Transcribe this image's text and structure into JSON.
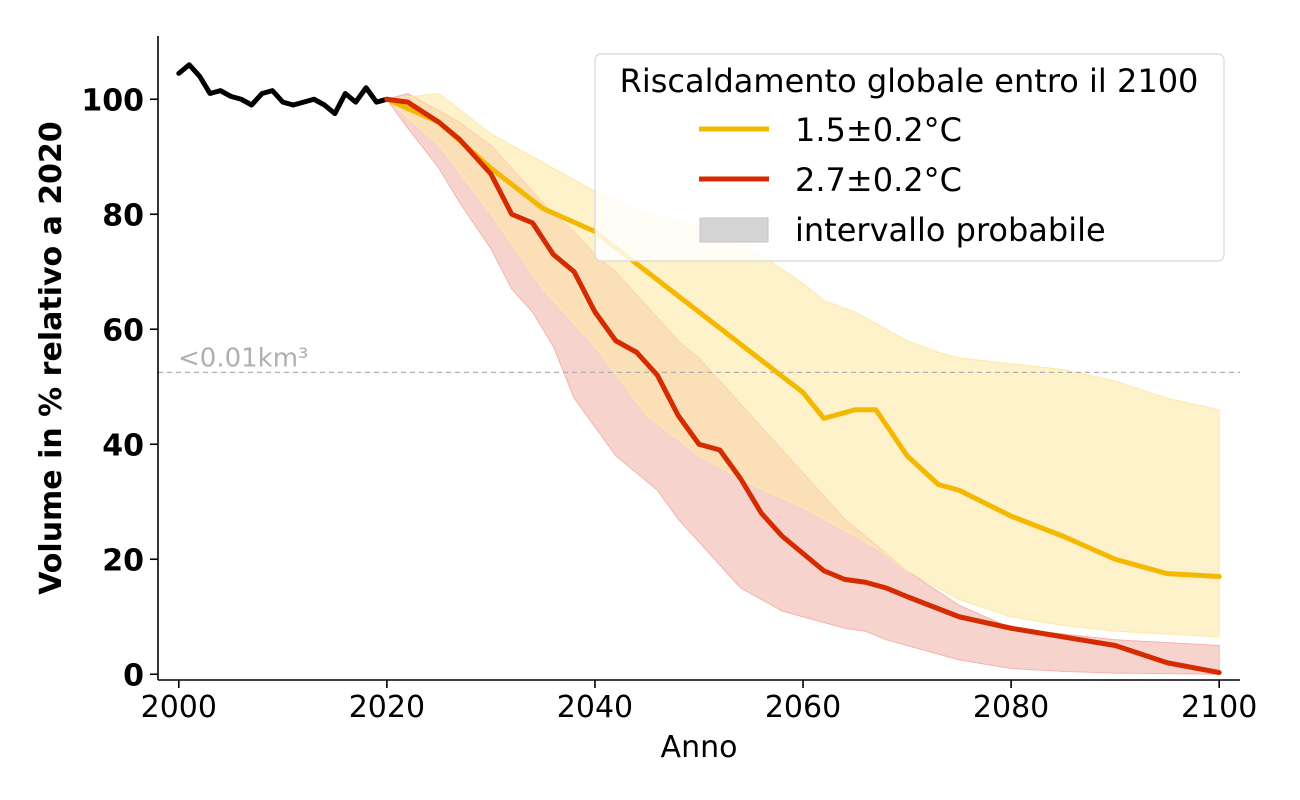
{
  "chart_data": {
    "type": "line",
    "xlabel": "Anno",
    "ylabel": "Volume in % relativo a 2020",
    "xlim": [
      1998,
      2102
    ],
    "ylim": [
      -1,
      111
    ],
    "xticks": [
      2000,
      2020,
      2040,
      2060,
      2080,
      2100
    ],
    "yticks": [
      0,
      20,
      40,
      60,
      80,
      100
    ],
    "grid": false,
    "legend": {
      "placement": "top-right",
      "title": "Riscaldamento globale entro il 2100",
      "entries": [
        "1.5±0.2°C",
        "2.7±0.2°C",
        "intervallo probabile"
      ]
    },
    "threshold": {
      "y": 52.5,
      "label": "<0.01km³",
      "color": "#b0b0b0"
    },
    "series": [
      {
        "name": "",
        "color": "#000000",
        "x": [
          2000,
          2001,
          2002,
          2003,
          2004,
          2005,
          2006,
          2007,
          2008,
          2009,
          2010,
          2011,
          2012,
          2013,
          2014,
          2015,
          2016,
          2017,
          2018,
          2019,
          2020
        ],
        "values": [
          104.5,
          106,
          104,
          101,
          101.5,
          100.5,
          100,
          99,
          101,
          101.5,
          99.5,
          99,
          99.5,
          100,
          99,
          97.5,
          101,
          99.5,
          102,
          99.5,
          100
        ]
      },
      {
        "name": "1.5±0.2°C",
        "color": "#f5b800",
        "band_color": "#fde9a8",
        "x": [
          2020,
          2025,
          2030,
          2035,
          2040,
          2045,
          2050,
          2055,
          2060,
          2062,
          2065,
          2067,
          2070,
          2073,
          2075,
          2080,
          2085,
          2090,
          2095,
          2100
        ],
        "values": [
          100,
          96,
          88,
          81,
          77,
          70,
          63,
          56,
          49,
          44.5,
          46,
          46,
          38,
          33,
          32,
          27.5,
          24,
          20,
          17.5,
          17
        ],
        "low": [
          100,
          92,
          80,
          67,
          57,
          45,
          38,
          33,
          29,
          27,
          24,
          22,
          18,
          15,
          13,
          10,
          8.5,
          7.5,
          7,
          6.5
        ],
        "high": [
          100,
          101,
          94,
          89,
          84,
          80,
          78,
          74,
          68,
          65,
          63,
          61,
          58,
          56,
          55,
          54,
          53,
          51,
          48,
          46
        ]
      },
      {
        "name": "2.7±0.2°C",
        "color": "#d42b00",
        "band_color": "#f2b5ad",
        "x": [
          2020,
          2022,
          2025,
          2027,
          2030,
          2032,
          2034,
          2036,
          2038,
          2040,
          2042,
          2044,
          2046,
          2048,
          2050,
          2052,
          2054,
          2056,
          2058,
          2060,
          2062,
          2064,
          2066,
          2068,
          2070,
          2075,
          2080,
          2085,
          2090,
          2095,
          2100
        ],
        "values": [
          100,
          99.5,
          96,
          93,
          87,
          80,
          78.5,
          73,
          70,
          63,
          58,
          56,
          52,
          45,
          40,
          39,
          34,
          28,
          24,
          21,
          18,
          16.5,
          16,
          15,
          13.5,
          10,
          8,
          6.5,
          5,
          2,
          0.3
        ],
        "low": [
          100,
          95,
          88,
          82,
          74,
          67,
          63,
          57,
          48,
          43,
          38,
          35,
          32,
          27,
          23,
          19,
          15,
          13,
          11,
          10,
          9,
          8,
          7.5,
          6,
          5,
          2.5,
          1,
          0.5,
          0.2,
          0.1,
          0
        ],
        "high": [
          100,
          101,
          98,
          96,
          92,
          88,
          84,
          80,
          77,
          73,
          70,
          66,
          62,
          58,
          55,
          51,
          47,
          43,
          39,
          35,
          31,
          27,
          24,
          21,
          18,
          12,
          8,
          7,
          6,
          5.5,
          5
        ]
      }
    ]
  }
}
